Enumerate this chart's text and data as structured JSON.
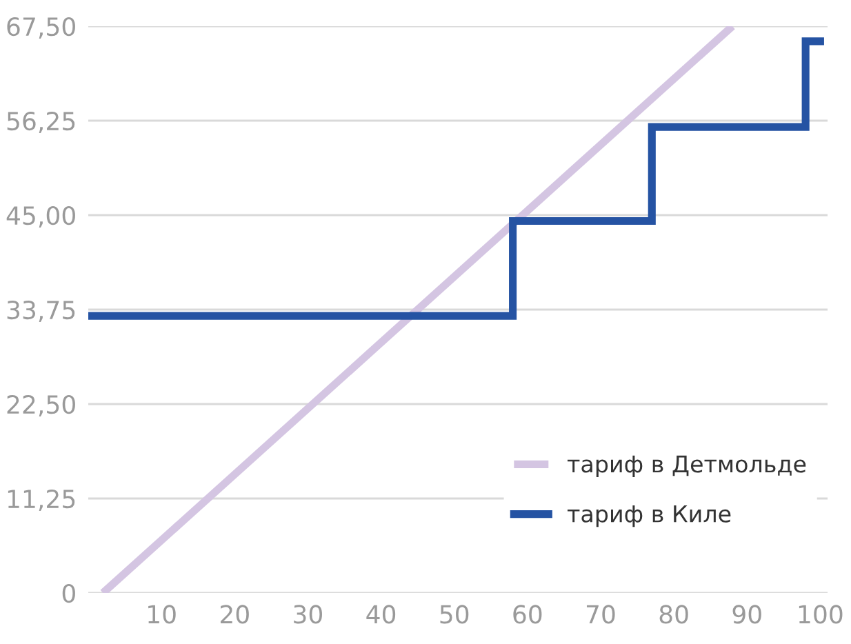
{
  "chart_data": {
    "type": "line",
    "series": [
      {
        "name": "тариф в Детмольде",
        "color": "#d4c5e2",
        "x": [
          2,
          88
        ],
        "values": [
          0,
          67.5
        ]
      },
      {
        "name": "тариф в Киле",
        "color": "#2553a3",
        "type": "step",
        "x": [
          0,
          58,
          77,
          98,
          100
        ],
        "values": [
          33,
          44.3,
          55.5,
          65.7,
          65.7
        ]
      }
    ],
    "xlim": [
      0,
      101
    ],
    "xticks": [
      10,
      20,
      30,
      40,
      50,
      60,
      70,
      80,
      90,
      100
    ],
    "ylim": [
      0,
      67.5
    ],
    "yticks": [
      0,
      {
        "value": 11.25,
        "label": "11,25"
      },
      {
        "value": 22.5,
        "label": "22,50"
      },
      {
        "value": 33.75,
        "label": "33,75"
      },
      {
        "value": 45,
        "label": "45,00"
      },
      {
        "value": 56.25,
        "label": "56,25"
      },
      {
        "value": 67.5,
        "label": "67,50"
      }
    ],
    "grid": "y",
    "legend": "bottom right"
  }
}
